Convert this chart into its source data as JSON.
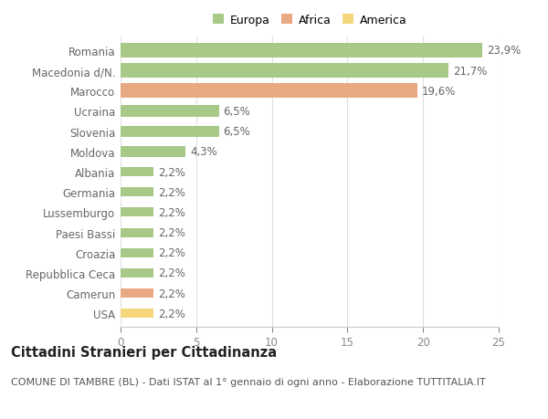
{
  "categories": [
    "Romania",
    "Macedonia d/N.",
    "Marocco",
    "Ucraina",
    "Slovenia",
    "Moldova",
    "Albania",
    "Germania",
    "Lussemburgo",
    "Paesi Bassi",
    "Croazia",
    "Repubblica Ceca",
    "Camerun",
    "USA"
  ],
  "values": [
    23.9,
    21.7,
    19.6,
    6.5,
    6.5,
    4.3,
    2.2,
    2.2,
    2.2,
    2.2,
    2.2,
    2.2,
    2.2,
    2.2
  ],
  "labels": [
    "23,9%",
    "21,7%",
    "19,6%",
    "6,5%",
    "6,5%",
    "4,3%",
    "2,2%",
    "2,2%",
    "2,2%",
    "2,2%",
    "2,2%",
    "2,2%",
    "2,2%",
    "2,2%"
  ],
  "colors": [
    "#a8c887",
    "#a8c887",
    "#e8a882",
    "#a8c887",
    "#a8c887",
    "#a8c887",
    "#a8c887",
    "#a8c887",
    "#a8c887",
    "#a8c887",
    "#a8c887",
    "#a8c887",
    "#e8a882",
    "#f5d67a"
  ],
  "legend_labels": [
    "Europa",
    "Africa",
    "America"
  ],
  "legend_colors": [
    "#a8c887",
    "#e8a882",
    "#f5d67a"
  ],
  "title": "Cittadini Stranieri per Cittadinanza",
  "subtitle": "COMUNE DI TAMBRE (BL) - Dati ISTAT al 1° gennaio di ogni anno - Elaborazione TUTTITALIA.IT",
  "xlim": [
    0,
    25
  ],
  "xticks": [
    0,
    5,
    10,
    15,
    20,
    25
  ],
  "background_color": "#ffffff",
  "grid_color": "#e0e0e0",
  "bar_heights": [
    0.72,
    0.72,
    0.72,
    0.55,
    0.55,
    0.55,
    0.45,
    0.45,
    0.45,
    0.45,
    0.45,
    0.45,
    0.45,
    0.45
  ],
  "label_fontsize": 8.5,
  "tick_fontsize": 8.5,
  "title_fontsize": 10.5,
  "subtitle_fontsize": 8.0
}
